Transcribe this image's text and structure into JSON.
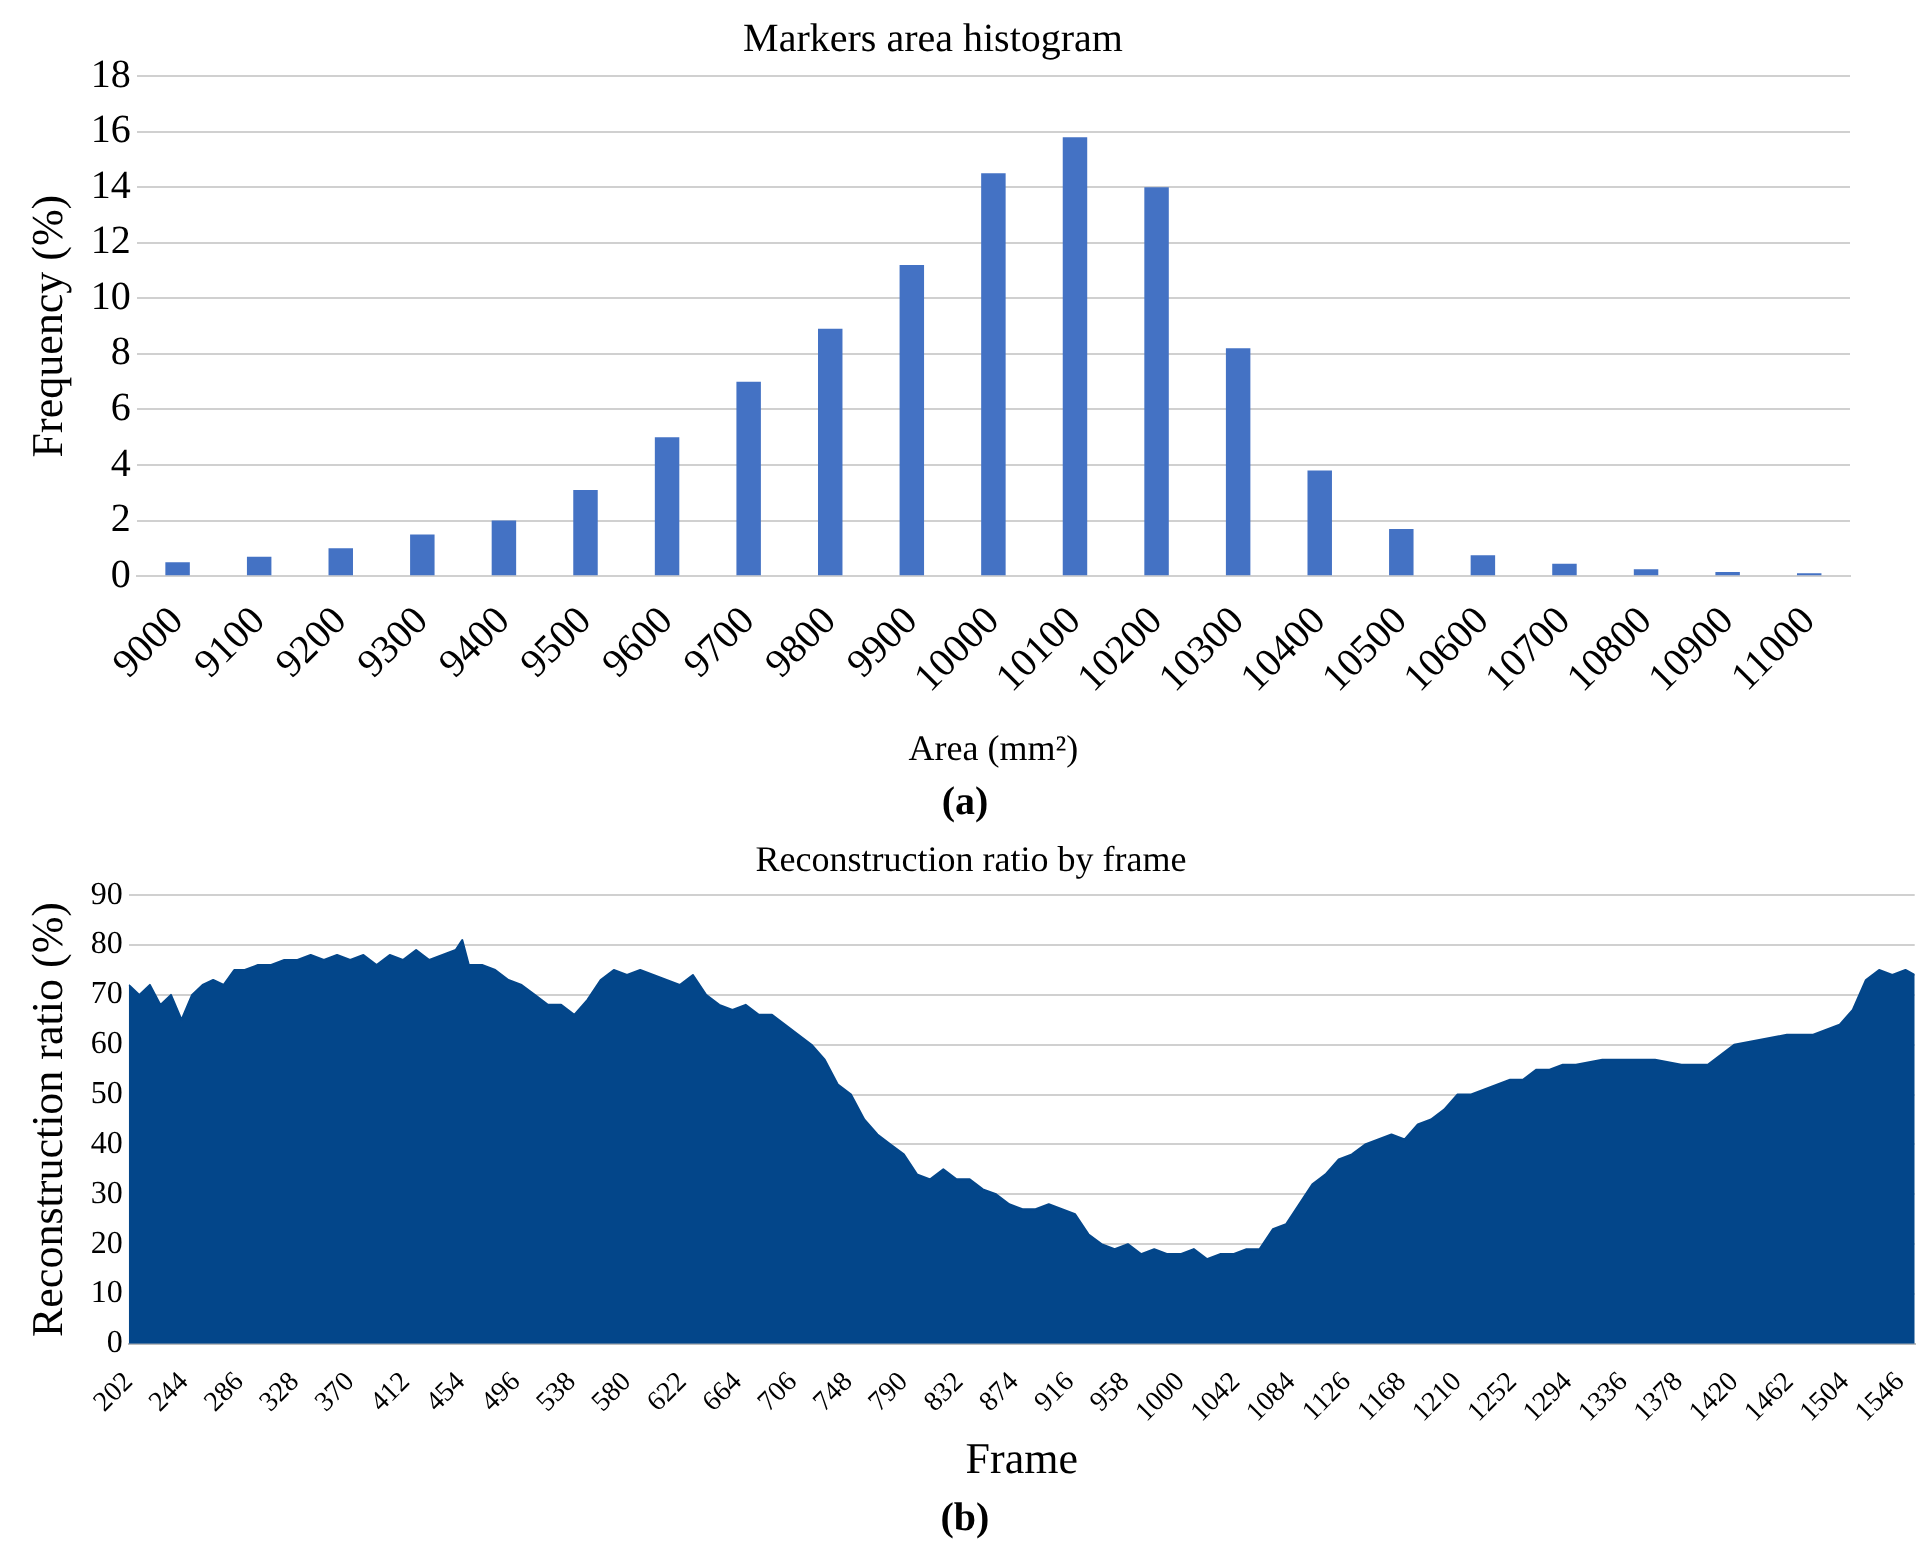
{
  "chart_data": [
    {
      "type": "bar",
      "title": "Markers area histogram",
      "xlabel": "Area (mm²)",
      "ylabel": "Frequency (%)",
      "categories": [
        "9000",
        "9100",
        "9200",
        "9300",
        "9400",
        "9500",
        "9600",
        "9700",
        "9800",
        "9900",
        "10000",
        "10100",
        "10200",
        "10300",
        "10400",
        "10500",
        "10600",
        "10700",
        "10800",
        "10900",
        "11000"
      ],
      "values": [
        0.5,
        0.7,
        1.0,
        1.5,
        2.0,
        3.1,
        5.0,
        7.0,
        8.9,
        11.2,
        14.5,
        15.8,
        14.0,
        8.2,
        3.8,
        1.7,
        0.75,
        0.45,
        0.25,
        0.15,
        0.1
      ],
      "color": "#4472c4",
      "ylim": [
        0,
        18
      ],
      "yticks": [
        0,
        2,
        4,
        6,
        8,
        10,
        12,
        14,
        16,
        18
      ],
      "grid": "y",
      "annotations": [
        "(a)"
      ]
    },
    {
      "type": "area",
      "title": "Reconstruction ratio by frame",
      "xlabel": "Frame",
      "ylabel": "Reconstruction ratio (%)",
      "color": "#03468a",
      "x": [
        202,
        210,
        218,
        226,
        234,
        242,
        250,
        258,
        266,
        274,
        282,
        290,
        300,
        310,
        320,
        330,
        340,
        350,
        360,
        370,
        380,
        390,
        400,
        410,
        420,
        430,
        440,
        450,
        455,
        460,
        470,
        480,
        490,
        500,
        510,
        520,
        530,
        540,
        550,
        560,
        570,
        580,
        590,
        600,
        610,
        620,
        630,
        640,
        650,
        660,
        670,
        680,
        690,
        700,
        710,
        720,
        730,
        740,
        750,
        760,
        770,
        780,
        790,
        800,
        810,
        820,
        830,
        840,
        850,
        860,
        870,
        880,
        890,
        900,
        910,
        920,
        930,
        940,
        950,
        960,
        970,
        980,
        990,
        1000,
        1010,
        1020,
        1030,
        1040,
        1050,
        1060,
        1070,
        1080,
        1090,
        1100,
        1110,
        1120,
        1130,
        1140,
        1150,
        1160,
        1170,
        1180,
        1190,
        1200,
        1210,
        1220,
        1230,
        1240,
        1250,
        1260,
        1270,
        1280,
        1290,
        1300,
        1320,
        1340,
        1360,
        1380,
        1400,
        1420,
        1440,
        1460,
        1480,
        1500,
        1510,
        1520,
        1530,
        1540,
        1550,
        1557
      ],
      "values": [
        72,
        70,
        72,
        68,
        70,
        65,
        70,
        72,
        73,
        72,
        75,
        75,
        76,
        76,
        77,
        77,
        78,
        77,
        78,
        77,
        78,
        76,
        78,
        77,
        79,
        77,
        78,
        79,
        81,
        76,
        76,
        75,
        73,
        72,
        70,
        68,
        68,
        66,
        69,
        73,
        75,
        74,
        75,
        74,
        73,
        72,
        74,
        70,
        68,
        67,
        68,
        66,
        66,
        64,
        62,
        60,
        57,
        52,
        50,
        45,
        42,
        40,
        38,
        34,
        33,
        35,
        33,
        33,
        31,
        30,
        28,
        27,
        27,
        28,
        27,
        26,
        22,
        20,
        19,
        20,
        18,
        19,
        18,
        18,
        19,
        17,
        18,
        18,
        19,
        19,
        23,
        24,
        28,
        32,
        34,
        37,
        38,
        40,
        41,
        42,
        41,
        44,
        45,
        47,
        50,
        50,
        51,
        52,
        53,
        53,
        55,
        55,
        56,
        56,
        57,
        57,
        57,
        56,
        56,
        60,
        61,
        62,
        62,
        64,
        67,
        73,
        75,
        74,
        75,
        74
      ],
      "xlim": [
        202,
        1557
      ],
      "xticks": [
        202,
        244,
        286,
        328,
        370,
        412,
        454,
        496,
        538,
        580,
        622,
        664,
        706,
        748,
        790,
        832,
        874,
        916,
        958,
        1000,
        1042,
        1084,
        1126,
        1168,
        1210,
        1252,
        1294,
        1336,
        1378,
        1420,
        1462,
        1504,
        1546
      ],
      "ylim": [
        0,
        90
      ],
      "yticks": [
        0,
        10,
        20,
        30,
        40,
        50,
        60,
        70,
        80,
        90
      ],
      "grid": "y",
      "annotations": [
        "(b)"
      ]
    }
  ]
}
